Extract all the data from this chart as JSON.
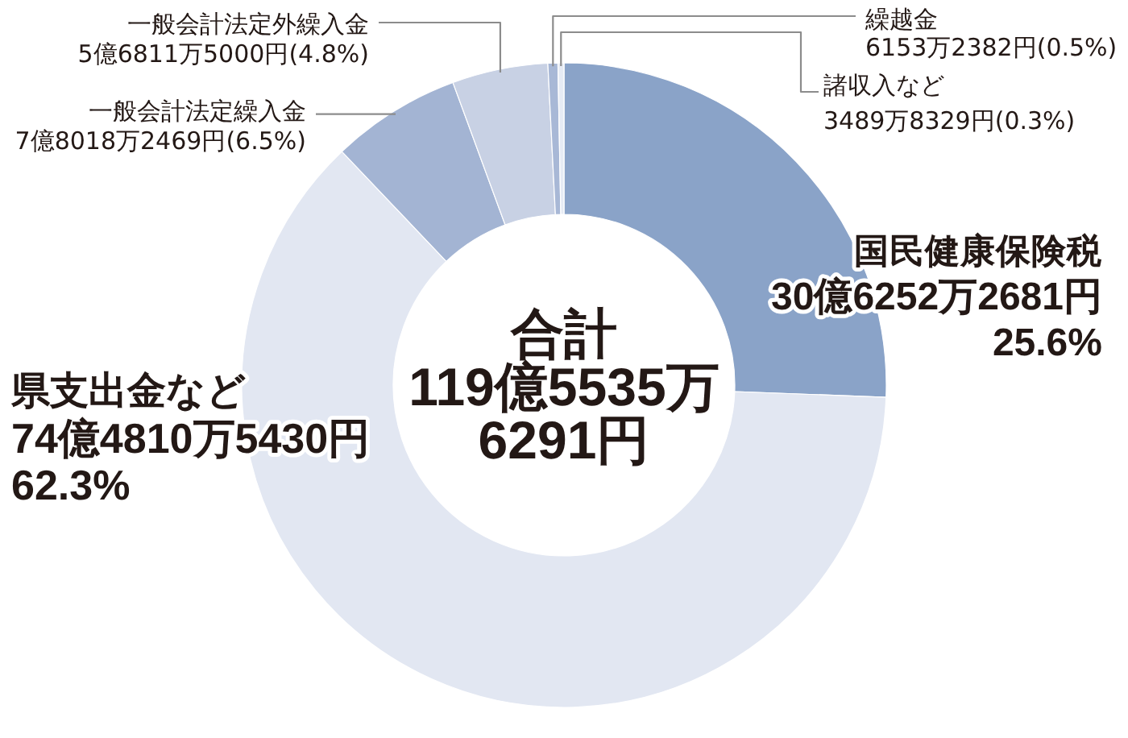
{
  "chart_data": {
    "type": "donut",
    "categories": [
      "国民健康保険税",
      "県支出金など",
      "一般会計法定繰入金",
      "一般会計法定外繰入金",
      "繰越金",
      "諸収入など"
    ],
    "values": [
      25.6,
      62.3,
      6.5,
      4.8,
      0.5,
      0.3
    ],
    "colors": [
      "#8aa3c8",
      "#e2e7f2",
      "#a3b4d3",
      "#c8d1e4",
      "#a8b8d6",
      "#e6ebf4"
    ],
    "value_labels": [
      "30億6252万2681円 25.6%",
      "74億4810万5430円 62.3%",
      "7億8018万2469円(6.5%)",
      "5億6811万5000円(4.8%)",
      "6153万2382円(0.5%)",
      "3489万8329円(0.3%)"
    ],
    "annotations": [
      "合計",
      "119億5535万6291円"
    ]
  }
}
